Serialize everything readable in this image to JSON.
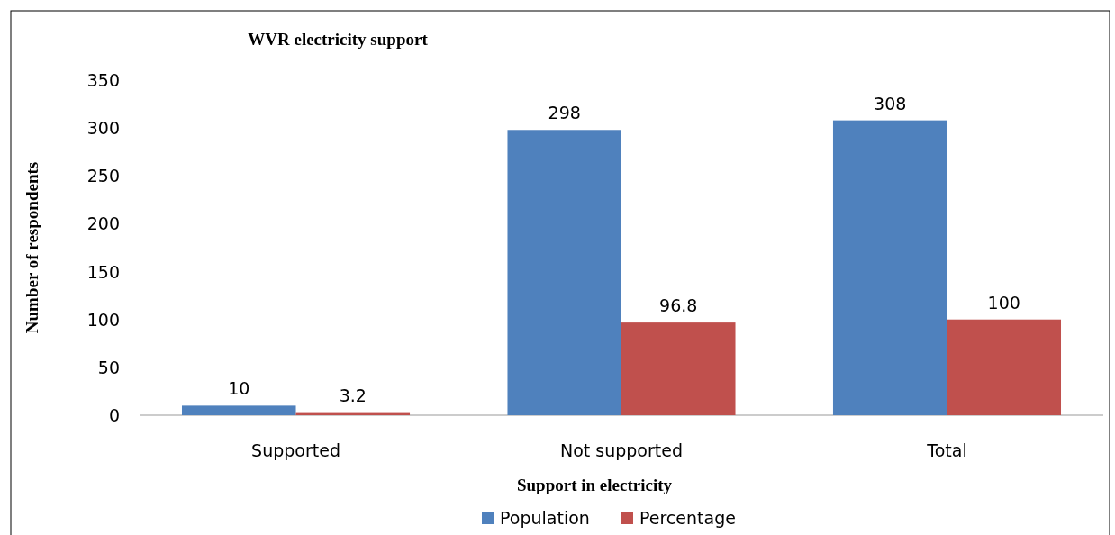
{
  "chart_data": {
    "type": "bar",
    "title": "WVR electricity support",
    "xlabel": "Support in electricity",
    "ylabel": "Number of respondents",
    "categories": [
      "Supported",
      "Not supported",
      "Total"
    ],
    "series": [
      {
        "name": "Population",
        "color": "#4f81bd",
        "values": [
          10,
          298,
          308
        ]
      },
      {
        "name": "Percentage",
        "color": "#c0504d",
        "values": [
          3.2,
          96.8,
          100
        ]
      }
    ],
    "ylim": [
      0,
      350
    ],
    "yticks": [
      0,
      50,
      100,
      150,
      200,
      250,
      300,
      350
    ],
    "grid": false,
    "legend": "bottom",
    "data_labels": true
  }
}
